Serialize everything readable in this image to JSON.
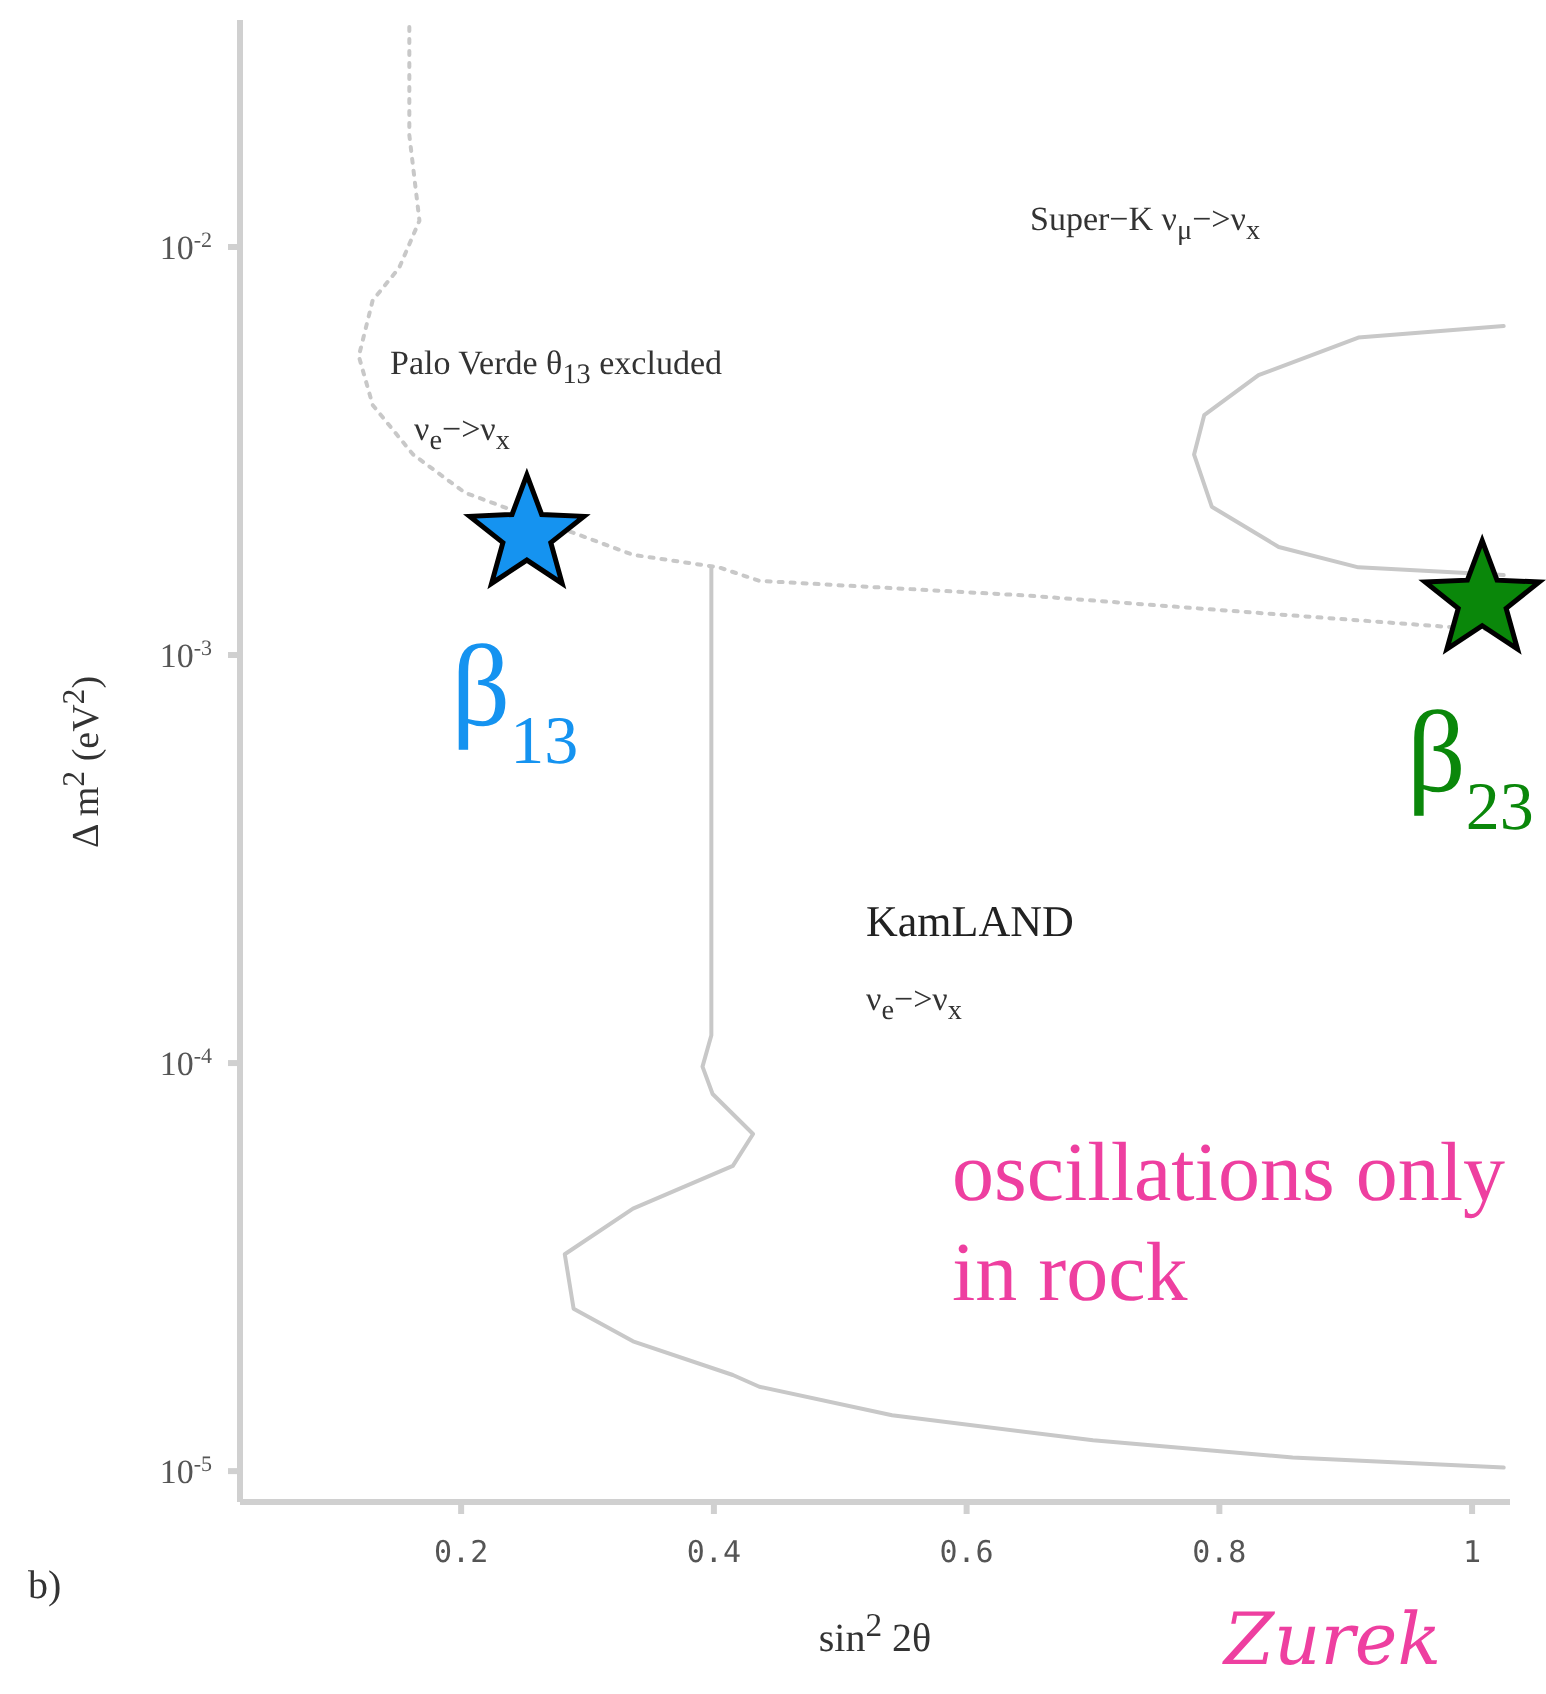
{
  "chart_data": {
    "type": "line",
    "xlabel": "sin$^{2}$ 2θ",
    "ylabel": "Δ m$^{2}$ (eV$^{2}$)",
    "log": "y",
    "xlim": [
      0.025,
      1.03
    ],
    "xticks": [
      0.2,
      0.4,
      0.6,
      0.8,
      1
    ],
    "ylim": [
      8.4e-06,
      0.036
    ],
    "yticks": [
      {
        "value": 1e-05,
        "label": "10$^{-5}$"
      },
      {
        "value": 0.0001,
        "label": "10$^{-4}$"
      },
      {
        "value": 0.001,
        "label": "10$^{-3}$"
      },
      {
        "value": 0.01,
        "label": "10$^{-2}$"
      }
    ],
    "marker": "none",
    "series": [
      {
        "color": "#c8c8c8",
        "line_style": "dotted",
        "x": [
          0.159,
          0.159,
          0.167,
          0.151,
          0.13,
          0.119,
          0.13,
          0.162,
          0.203,
          0.336,
          0.404,
          0.436,
          0.646,
          0.858,
          0.984,
          1.025
        ],
        "values": [
          0.0346,
          0.0188,
          0.0116,
          0.0089,
          0.0074,
          0.0054,
          0.0041,
          0.0031,
          0.0025,
          0.00176,
          0.00164,
          0.00152,
          0.0014,
          0.00125,
          0.00117,
          0.00115
        ]
      },
      {
        "color": "#c8c8c8",
        "line_style": "solid",
        "x": [
          1.025,
          0.91,
          0.831,
          0.788,
          0.78,
          0.794,
          0.847,
          0.91,
          1.025
        ],
        "values": [
          0.0064,
          0.006,
          0.00485,
          0.00387,
          0.0031,
          0.00231,
          0.00184,
          0.00164,
          0.00157
        ]
      },
      {
        "color": "#c8c8c8",
        "line_style": "solid",
        "x": [
          0.398,
          0.398,
          0.398,
          0.391,
          0.399,
          0.431,
          0.415,
          0.336,
          0.282,
          0.289,
          0.336,
          0.415,
          0.436,
          0.541,
          0.7,
          0.858,
          1.025
        ],
        "values": [
          0.00164,
          0.00044,
          0.000117,
          9.8e-05,
          8.4e-05,
          6.7e-05,
          5.6e-05,
          4.4e-05,
          3.4e-05,
          2.5e-05,
          2.08e-05,
          1.72e-05,
          1.61e-05,
          1.37e-05,
          1.19e-05,
          1.08e-05,
          1.02e-05
        ]
      },
      {
        "type": "scatter",
        "name": "β$_{13}$",
        "color": "#1593f0",
        "marker": "star",
        "x": [
          0.252
        ],
        "values": [
          0.00197
        ]
      },
      {
        "type": "scatter",
        "name": "β$_{23}$",
        "color": "#0a870a",
        "marker": "star",
        "x": [
          1.008
        ],
        "values": [
          0.00136
        ]
      }
    ],
    "annotations": [
      "Palo Verde   θ$_{13}$ excluded",
      "ν$_{e}$−>ν$_{x}$",
      "Super−K   ν$_{μ}$−>ν$_{x}$",
      "KamLAND",
      "ν$_{e}$−>ν$_{x}$",
      "oscillations only in rock",
      "b)",
      "Zurek"
    ]
  }
}
